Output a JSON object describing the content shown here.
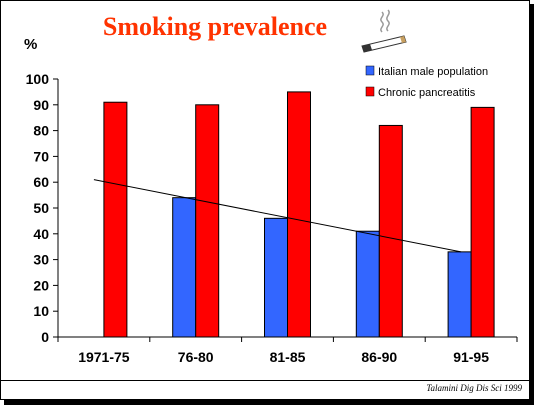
{
  "title": "Smoking prevalence",
  "unit_label": "%",
  "citation": "Talamini Dig Dis Sci 1999",
  "colors": {
    "title": "#ff3300",
    "italian": "#3366ff",
    "pancreatitis": "#ff0000"
  },
  "chart_data": {
    "type": "bar",
    "categories": [
      "1971-75",
      "76-80",
      "81-85",
      "86-90",
      "91-95"
    ],
    "series": [
      {
        "name": "Italian male population",
        "color": "#3366ff",
        "values": [
          null,
          54,
          46,
          41,
          33
        ]
      },
      {
        "name": "Chronic pancreatitis",
        "color": "#ff0000",
        "values": [
          91,
          90,
          95,
          82,
          89
        ]
      }
    ],
    "trendline": {
      "start": 61,
      "end": 33
    },
    "ylim": [
      0,
      100
    ],
    "yticks": [
      0,
      10,
      20,
      30,
      40,
      50,
      60,
      70,
      80,
      90,
      100
    ],
    "grid": false,
    "legend_position": "top-right"
  }
}
